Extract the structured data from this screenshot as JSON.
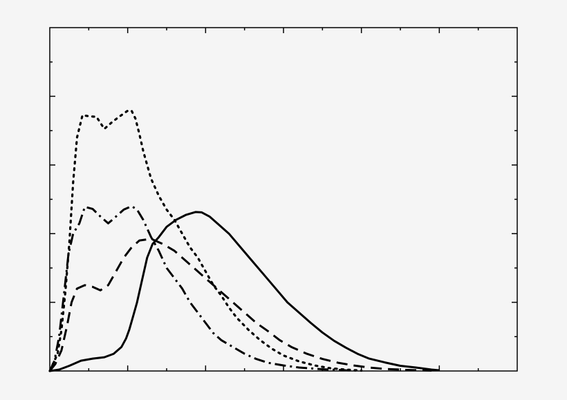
{
  "chart_data": {
    "type": "line",
    "title": "",
    "xlabel": "",
    "ylabel": "",
    "xlim": [
      0,
      6
    ],
    "ylim": [
      0,
      1
    ],
    "grid": false,
    "legend": "none",
    "x_major_ticks": [
      1,
      2,
      3,
      4,
      5
    ],
    "x_minor_ticks": [
      0.5,
      1.5,
      2.5,
      3.5,
      4.5,
      5.5
    ],
    "y_major_ticks": [
      0.2,
      0.4,
      0.6,
      0.8
    ],
    "y_minor_ticks": [
      0.1,
      0.3,
      0.5,
      0.7,
      0.9
    ],
    "series": [
      {
        "style": "solid",
        "color": "#000000",
        "points": [
          [
            0,
            0
          ],
          [
            0.12,
            0.004
          ],
          [
            0.25,
            0.015
          ],
          [
            0.4,
            0.03
          ],
          [
            0.55,
            0.036
          ],
          [
            0.7,
            0.04
          ],
          [
            0.82,
            0.05
          ],
          [
            0.92,
            0.07
          ],
          [
            0.98,
            0.095
          ],
          [
            1.02,
            0.12
          ],
          [
            1.07,
            0.16
          ],
          [
            1.12,
            0.2
          ],
          [
            1.18,
            0.26
          ],
          [
            1.25,
            0.33
          ],
          [
            1.32,
            0.37
          ],
          [
            1.4,
            0.39
          ],
          [
            1.5,
            0.42
          ],
          [
            1.62,
            0.44
          ],
          [
            1.75,
            0.455
          ],
          [
            1.87,
            0.463
          ],
          [
            1.95,
            0.462
          ],
          [
            2.05,
            0.45
          ],
          [
            2.15,
            0.43
          ],
          [
            2.3,
            0.4
          ],
          [
            2.45,
            0.36
          ],
          [
            2.6,
            0.32
          ],
          [
            2.75,
            0.28
          ],
          [
            2.9,
            0.24
          ],
          [
            3.05,
            0.2
          ],
          [
            3.2,
            0.17
          ],
          [
            3.35,
            0.14
          ],
          [
            3.5,
            0.112
          ],
          [
            3.65,
            0.088
          ],
          [
            3.8,
            0.068
          ],
          [
            3.95,
            0.05
          ],
          [
            4.1,
            0.036
          ],
          [
            4.3,
            0.025
          ],
          [
            4.5,
            0.015
          ],
          [
            4.7,
            0.01
          ],
          [
            4.9,
            0.004
          ],
          [
            5.0,
            0.002
          ]
        ]
      },
      {
        "style": "dashed",
        "color": "#000000",
        "points": [
          [
            0,
            0
          ],
          [
            0.07,
            0.02
          ],
          [
            0.15,
            0.06
          ],
          [
            0.22,
            0.13
          ],
          [
            0.28,
            0.2
          ],
          [
            0.35,
            0.24
          ],
          [
            0.45,
            0.25
          ],
          [
            0.55,
            0.245
          ],
          [
            0.65,
            0.235
          ],
          [
            0.75,
            0.25
          ],
          [
            0.85,
            0.29
          ],
          [
            0.95,
            0.33
          ],
          [
            1.05,
            0.36
          ],
          [
            1.15,
            0.38
          ],
          [
            1.3,
            0.385
          ],
          [
            1.45,
            0.37
          ],
          [
            1.6,
            0.35
          ],
          [
            1.75,
            0.32
          ],
          [
            1.9,
            0.29
          ],
          [
            2.05,
            0.26
          ],
          [
            2.2,
            0.23
          ],
          [
            2.35,
            0.2
          ],
          [
            2.5,
            0.17
          ],
          [
            2.65,
            0.14
          ],
          [
            2.8,
            0.116
          ],
          [
            2.95,
            0.09
          ],
          [
            3.1,
            0.07
          ],
          [
            3.3,
            0.05
          ],
          [
            3.5,
            0.035
          ],
          [
            3.7,
            0.024
          ],
          [
            3.9,
            0.016
          ],
          [
            4.1,
            0.01
          ],
          [
            4.3,
            0.006
          ],
          [
            4.6,
            0.003
          ],
          [
            4.9,
            0.001
          ]
        ]
      },
      {
        "style": "dash-dot",
        "color": "#000000",
        "points": [
          [
            0,
            0
          ],
          [
            0.06,
            0.03
          ],
          [
            0.12,
            0.1
          ],
          [
            0.18,
            0.22
          ],
          [
            0.24,
            0.34
          ],
          [
            0.3,
            0.4
          ],
          [
            0.38,
            0.43
          ],
          [
            0.45,
            0.478
          ],
          [
            0.55,
            0.472
          ],
          [
            0.65,
            0.45
          ],
          [
            0.75,
            0.43
          ],
          [
            0.85,
            0.45
          ],
          [
            0.95,
            0.47
          ],
          [
            1.05,
            0.48
          ],
          [
            1.12,
            0.47
          ],
          [
            1.2,
            0.44
          ],
          [
            1.3,
            0.39
          ],
          [
            1.4,
            0.35
          ],
          [
            1.5,
            0.3
          ],
          [
            1.6,
            0.27
          ],
          [
            1.7,
            0.24
          ],
          [
            1.8,
            0.2
          ],
          [
            1.9,
            0.17
          ],
          [
            2.0,
            0.14
          ],
          [
            2.1,
            0.11
          ],
          [
            2.2,
            0.09
          ],
          [
            2.35,
            0.07
          ],
          [
            2.5,
            0.05
          ],
          [
            2.65,
            0.035
          ],
          [
            2.8,
            0.024
          ],
          [
            3.0,
            0.016
          ],
          [
            3.2,
            0.01
          ],
          [
            3.5,
            0.005
          ],
          [
            3.8,
            0.002
          ],
          [
            4.0,
            0.001
          ]
        ]
      },
      {
        "style": "dotted",
        "color": "#000000",
        "points": [
          [
            0,
            0
          ],
          [
            0.1,
            0.05
          ],
          [
            0.15,
            0.12
          ],
          [
            0.2,
            0.23
          ],
          [
            0.25,
            0.37
          ],
          [
            0.3,
            0.55
          ],
          [
            0.35,
            0.68
          ],
          [
            0.42,
            0.745
          ],
          [
            0.5,
            0.742
          ],
          [
            0.6,
            0.74
          ],
          [
            0.7,
            0.705
          ],
          [
            0.8,
            0.725
          ],
          [
            0.9,
            0.742
          ],
          [
            1.0,
            0.758
          ],
          [
            1.05,
            0.758
          ],
          [
            1.1,
            0.735
          ],
          [
            1.15,
            0.69
          ],
          [
            1.2,
            0.64
          ],
          [
            1.25,
            0.6
          ],
          [
            1.3,
            0.56
          ],
          [
            1.4,
            0.51
          ],
          [
            1.5,
            0.47
          ],
          [
            1.6,
            0.44
          ],
          [
            1.7,
            0.4
          ],
          [
            1.8,
            0.36
          ],
          [
            1.9,
            0.33
          ],
          [
            2.0,
            0.29
          ],
          [
            2.1,
            0.25
          ],
          [
            2.2,
            0.22
          ],
          [
            2.3,
            0.185
          ],
          [
            2.4,
            0.155
          ],
          [
            2.55,
            0.12
          ],
          [
            2.7,
            0.09
          ],
          [
            2.85,
            0.065
          ],
          [
            3.0,
            0.045
          ],
          [
            3.2,
            0.028
          ],
          [
            3.4,
            0.016
          ],
          [
            3.6,
            0.008
          ],
          [
            3.8,
            0.004
          ],
          [
            4.0,
            0.001
          ]
        ]
      }
    ]
  }
}
